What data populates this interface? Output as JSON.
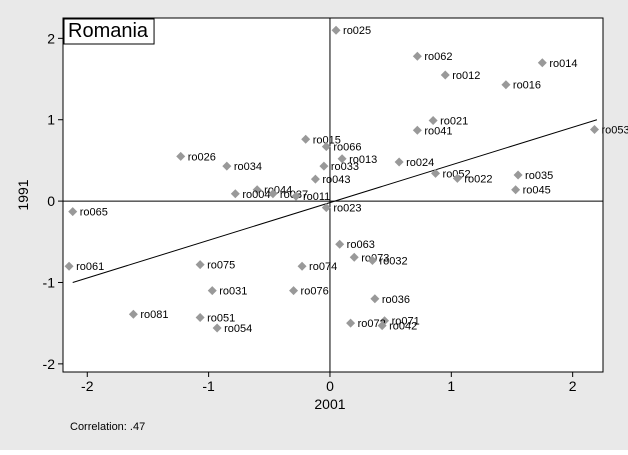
{
  "chart_data": {
    "type": "scatter",
    "title": "Romania",
    "xlabel": "2001",
    "ylabel": "1991",
    "xlim": [
      -2.2,
      2.25
    ],
    "ylim": [
      -2.1,
      2.25
    ],
    "xticks": [
      -2,
      -1,
      0,
      1,
      2
    ],
    "yticks": [
      -2,
      -1,
      0,
      1,
      2
    ],
    "grid": false,
    "reference_lines": {
      "x": 0,
      "y": 0
    },
    "fit_line": {
      "x": [
        -2.12,
        2.2
      ],
      "y": [
        -1.0,
        1.0
      ]
    },
    "note": "Correlation: .47",
    "marker_color": "#999999",
    "points": [
      {
        "label": "ro025",
        "x": 0.05,
        "y": 2.1
      },
      {
        "label": "ro062",
        "x": 0.72,
        "y": 1.78
      },
      {
        "label": "ro014",
        "x": 1.75,
        "y": 1.7
      },
      {
        "label": "ro012",
        "x": 0.95,
        "y": 1.55
      },
      {
        "label": "ro016",
        "x": 1.45,
        "y": 1.43
      },
      {
        "label": "ro021",
        "x": 0.85,
        "y": 0.99
      },
      {
        "label": "ro041",
        "x": 0.72,
        "y": 0.87
      },
      {
        "label": "ro053",
        "x": 2.18,
        "y": 0.88
      },
      {
        "label": "ro015",
        "x": -0.2,
        "y": 0.76
      },
      {
        "label": "ro066",
        "x": -0.03,
        "y": 0.67
      },
      {
        "label": "ro026",
        "x": -1.23,
        "y": 0.55
      },
      {
        "label": "ro013",
        "x": 0.1,
        "y": 0.52
      },
      {
        "label": "ro024",
        "x": 0.57,
        "y": 0.48
      },
      {
        "label": "ro034",
        "x": -0.85,
        "y": 0.43
      },
      {
        "label": "ro033",
        "x": -0.05,
        "y": 0.43
      },
      {
        "label": "ro052",
        "x": 0.87,
        "y": 0.34
      },
      {
        "label": "ro035",
        "x": 1.55,
        "y": 0.32
      },
      {
        "label": "ro022",
        "x": 1.05,
        "y": 0.28
      },
      {
        "label": "ro043",
        "x": -0.12,
        "y": 0.27
      },
      {
        "label": "ro044",
        "x": -0.6,
        "y": 0.14
      },
      {
        "label": "ro045",
        "x": 1.53,
        "y": 0.14
      },
      {
        "label": "ro004",
        "x": -0.78,
        "y": 0.09
      },
      {
        "label": "ro037",
        "x": -0.47,
        "y": 0.09
      },
      {
        "label": "ro011",
        "x": -0.28,
        "y": 0.06
      },
      {
        "label": "ro023",
        "x": -0.03,
        "y": -0.08
      },
      {
        "label": "ro065",
        "x": -2.12,
        "y": -0.13
      },
      {
        "label": "ro063",
        "x": 0.08,
        "y": -0.53
      },
      {
        "label": "ro073",
        "x": 0.2,
        "y": -0.69
      },
      {
        "label": "ro032",
        "x": 0.35,
        "y": -0.73
      },
      {
        "label": "ro061",
        "x": -2.15,
        "y": -0.8
      },
      {
        "label": "ro075",
        "x": -1.07,
        "y": -0.78
      },
      {
        "label": "ro074",
        "x": -0.23,
        "y": -0.8
      },
      {
        "label": "ro031",
        "x": -0.97,
        "y": -1.1
      },
      {
        "label": "ro076",
        "x": -0.3,
        "y": -1.1
      },
      {
        "label": "ro036",
        "x": 0.37,
        "y": -1.2
      },
      {
        "label": "ro081",
        "x": -1.62,
        "y": -1.39
      },
      {
        "label": "ro051",
        "x": -1.07,
        "y": -1.43
      },
      {
        "label": "ro071",
        "x": 0.45,
        "y": -1.47
      },
      {
        "label": "ro072",
        "x": 0.17,
        "y": -1.5
      },
      {
        "label": "ro042",
        "x": 0.43,
        "y": -1.53
      },
      {
        "label": "ro054",
        "x": -0.93,
        "y": -1.56
      }
    ]
  }
}
